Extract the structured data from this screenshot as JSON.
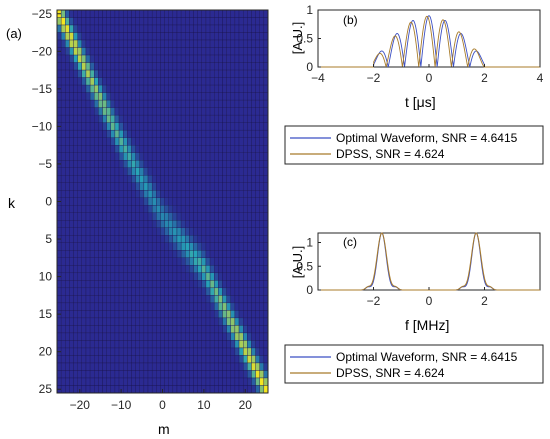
{
  "chart_data": [
    {
      "type": "heatmap",
      "panel_label": "(a)",
      "xlabel": "m",
      "ylabel": "k",
      "xlim": [
        -25,
        25
      ],
      "ylim": [
        -25,
        25
      ],
      "y_reversed": true,
      "xticks": [
        -20,
        -10,
        0,
        10,
        20
      ],
      "yticks": [
        -25,
        -20,
        -15,
        -10,
        -5,
        0,
        5,
        10,
        15,
        20,
        25
      ],
      "colors": {
        "low": "#2b1f8f",
        "mid": "#26a3b8",
        "high": "#f5e620"
      },
      "bright_band": [
        {
          "m": -25,
          "k": -25
        },
        {
          "m": -10,
          "k": -8
        },
        {
          "m": 0,
          "k": 2
        },
        {
          "m": 10,
          "k": 9
        },
        {
          "m": 25,
          "k": 25
        }
      ]
    },
    {
      "type": "line",
      "panel_label": "(b)",
      "xlabel": "t [μs]",
      "ylabel": "[A.U.]",
      "xlim": [
        -4,
        4
      ],
      "ylim": [
        0,
        1
      ],
      "xticks": [
        -4,
        -2,
        0,
        2,
        4
      ],
      "yticks": [
        0,
        0.5,
        1
      ],
      "yticklabels": [
        "0",
        "0.5",
        "1"
      ],
      "series": [
        {
          "name": "Optimal Waveform, SNR = 4.6415",
          "color": "#3b4fc4",
          "description": "oscillating envelope, support -2 to 2, peak 0.9"
        },
        {
          "name": "DPSS, SNR = 4.624",
          "color": "#a87b2a",
          "description": "oscillating envelope, support -2 to 2, peak 0.9"
        }
      ]
    },
    {
      "type": "line",
      "panel_label": "(c)",
      "xlabel": "f [MHz]",
      "ylabel": "[A.U.]",
      "xlim": [
        -4,
        4
      ],
      "ylim": [
        0,
        1.2
      ],
      "xticks": [
        -2,
        0,
        2
      ],
      "yticks": [
        0,
        0.5,
        1
      ],
      "yticklabels": [
        "0",
        "0.5",
        "1"
      ],
      "series": [
        {
          "name": "Optimal Waveform, SNR = 4.6415",
          "color": "#3b4fc4",
          "peaks": [
            {
              "f": -1.7,
              "value": 1.2
            },
            {
              "f": 1.7,
              "value": 1.2
            }
          ]
        },
        {
          "name": "DPSS, SNR = 4.624",
          "color": "#a87b2a",
          "peaks": [
            {
              "f": -1.7,
              "value": 1.2
            },
            {
              "f": 1.7,
              "value": 1.2
            }
          ]
        }
      ]
    }
  ],
  "legends": [
    {
      "entries": [
        {
          "label": "Optimal Waveform, SNR = 4.6415",
          "color": "#3b4fc4"
        },
        {
          "label": "DPSS, SNR = 4.624",
          "color": "#a87b2a"
        }
      ]
    },
    {
      "entries": [
        {
          "label": "Optimal Waveform, SNR = 4.6415",
          "color": "#3b4fc4"
        },
        {
          "label": "DPSS, SNR = 4.624",
          "color": "#a87b2a"
        }
      ]
    }
  ]
}
